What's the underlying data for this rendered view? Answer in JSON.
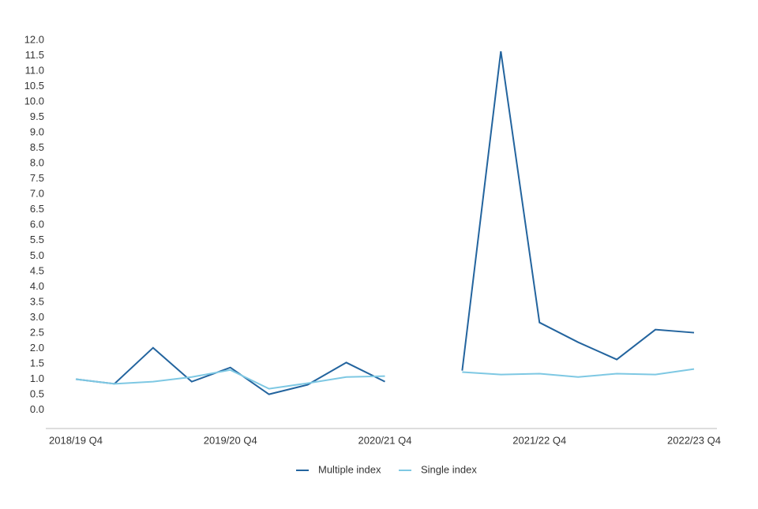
{
  "chart_data": {
    "type": "line",
    "categories": [
      "2018/19 Q4",
      null,
      null,
      null,
      "2019/20 Q4",
      null,
      null,
      null,
      "2020/21 Q4",
      null,
      null,
      null,
      "2021/22 Q4",
      null,
      null,
      null,
      "2022/23 Q4"
    ],
    "series": [
      {
        "name": "Multiple index",
        "color": "#23649e",
        "values": [
          1.0,
          0.85,
          2.02,
          0.92,
          1.38,
          0.51,
          0.82,
          1.54,
          0.92,
          null,
          1.28,
          11.64,
          2.84,
          2.2,
          1.64,
          2.61,
          2.51
        ]
      },
      {
        "name": "Single index",
        "color": "#7ec8e3",
        "values": [
          1.0,
          0.85,
          0.92,
          1.07,
          1.3,
          0.69,
          0.87,
          1.07,
          1.1,
          null,
          1.23,
          1.15,
          1.18,
          1.07,
          1.18,
          1.15,
          1.33
        ]
      }
    ],
    "ylim": [
      -0.6,
      12.0
    ],
    "yticks": [
      {
        "value": 0,
        "label": "0.0"
      },
      {
        "value": 0.5,
        "label": "0.5"
      },
      {
        "value": 1,
        "label": "1.0"
      },
      {
        "value": 1.5,
        "label": "1.5"
      },
      {
        "value": 2,
        "label": "2.0"
      },
      {
        "value": 2.5,
        "label": "2.5"
      },
      {
        "value": 3,
        "label": "3.0"
      },
      {
        "value": 3.5,
        "label": "3.5"
      },
      {
        "value": 4,
        "label": "4.0"
      },
      {
        "value": 4.5,
        "label": "4.5"
      },
      {
        "value": 5,
        "label": "5.0"
      },
      {
        "value": 5.5,
        "label": "5.5"
      },
      {
        "value": 6,
        "label": "6.0"
      },
      {
        "value": 6.5,
        "label": "6.5"
      },
      {
        "value": 7,
        "label": "7.0"
      },
      {
        "value": 7.5,
        "label": "7.5"
      },
      {
        "value": 8,
        "label": "8.0"
      },
      {
        "value": 8.5,
        "label": "8.5"
      },
      {
        "value": 9,
        "label": "9.0"
      },
      {
        "value": 9.5,
        "label": "9.5"
      },
      {
        "value": 10,
        "label": "10.0"
      },
      {
        "value": 10.5,
        "label": "10.5"
      },
      {
        "value": 11,
        "label": "11.0"
      },
      {
        "value": 11.5,
        "label": "11.5"
      },
      {
        "value": 12,
        "label": "12.0"
      }
    ],
    "grid": false,
    "legend": "bottom"
  }
}
